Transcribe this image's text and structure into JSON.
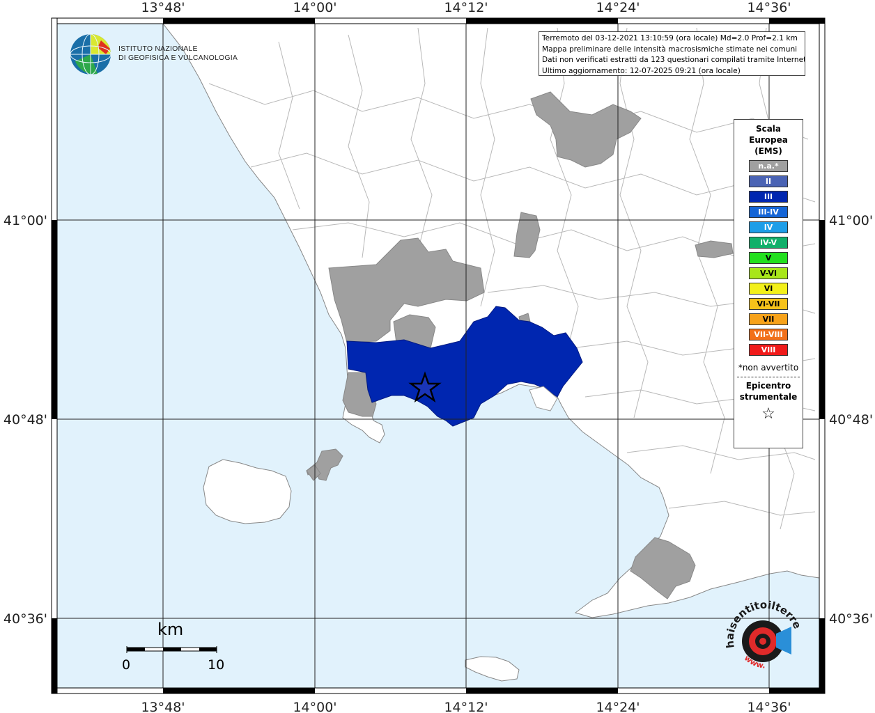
{
  "map": {
    "longitude_ticks": [
      "13°48'",
      "14°00'",
      "14°12'",
      "14°24'",
      "14°36'"
    ],
    "latitude_ticks": [
      "41°00'",
      "40°48'",
      "40°36'"
    ],
    "colors": {
      "sea": "#e1f2fc",
      "land": "#ffffff",
      "not_felt": "#a0a0a0",
      "intensity_III": "#0026b0",
      "frame": "#000000"
    },
    "epicenter_marker": "star-icon"
  },
  "info": {
    "line1": "Terremoto del 03-12-2021 13:10:59 (ora locale) Md=2.0 Prof=2.1 km",
    "line2": "Mappa preliminare delle intensità macrosismiche stimate nei comuni",
    "line3": "Dati non verificati estratti da 123 questionari compilati tramite Internet.",
    "line4": "Ultimo aggiornamento: 12-07-2025 09:21 (ora locale)"
  },
  "legend": {
    "title_line1": "Scala",
    "title_line2": "Europea",
    "title_line3": "(EMS)",
    "classes": [
      {
        "label": "n.a.*",
        "color": "#a0a0a0"
      },
      {
        "label": "II",
        "color": "#4a63b4"
      },
      {
        "label": "III",
        "color": "#0026b0"
      },
      {
        "label": "III-IV",
        "color": "#1565d6"
      },
      {
        "label": "IV",
        "color": "#1e9ee8"
      },
      {
        "label": "IV-V",
        "color": "#10b06a"
      },
      {
        "label": "V",
        "color": "#22e01e"
      },
      {
        "label": "V-VI",
        "color": "#a8e61a"
      },
      {
        "label": "VI",
        "color": "#f3f01a"
      },
      {
        "label": "VI-VII",
        "color": "#f6c21a"
      },
      {
        "label": "VII",
        "color": "#f7a21a"
      },
      {
        "label": "VII-VIII",
        "color": "#f2701a"
      },
      {
        "label": "VIII",
        "color": "#f01a1a"
      }
    ],
    "not_felt_note": "*non avvertito",
    "epicenter_line1": "Epicentro",
    "epicenter_line2": "strumentale",
    "epicenter_symbol": "☆"
  },
  "logo_ingv": {
    "line1": "ISTITUTO NAZIONALE",
    "line2": "DI GEOFISICA E VULCANOLOGIA"
  },
  "logo_hsit": {
    "text": "haisentitoilterremoto.it",
    "prefix": "www."
  },
  "scalebar": {
    "unit": "km",
    "label_start": "0",
    "label_end": "10"
  }
}
